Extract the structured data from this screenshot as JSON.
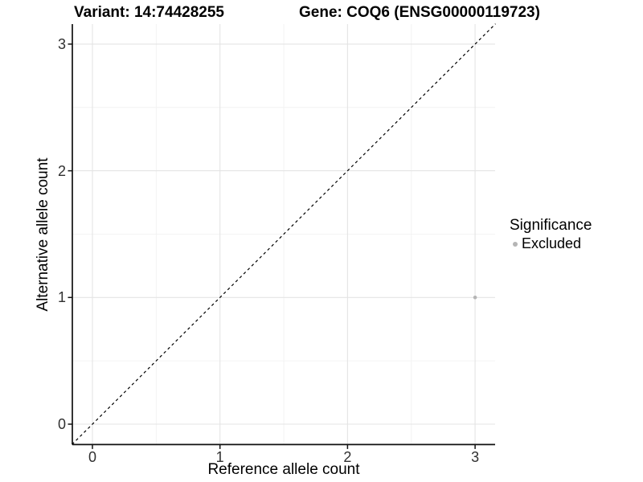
{
  "header": {
    "variant_title": "Variant: 14:74428255",
    "gene_title": "Gene: COQ6 (ENSG00000119723)"
  },
  "legend": {
    "title": "Significance",
    "items": [
      {
        "label": "Excluded",
        "color": "#b5b5b5"
      }
    ]
  },
  "chart_data": {
    "type": "scatter",
    "title_left": "Variant: 14:74428255",
    "title_right": "Gene: COQ6 (ENSG00000119723)",
    "xlabel": "Reference allele count",
    "ylabel": "Alternative allele count",
    "x_ticks": [
      0,
      1,
      2,
      3
    ],
    "y_ticks": [
      0,
      1,
      2,
      3
    ],
    "xlim": [
      -0.16,
      3.16
    ],
    "ylim": [
      -0.16,
      3.16
    ],
    "grid": "major+minor",
    "legend_position": "right",
    "identity_line": {
      "style": "dashed",
      "color": "#000000",
      "from": [
        -0.16,
        -0.16
      ],
      "to": [
        3.16,
        3.16
      ]
    },
    "series": [
      {
        "name": "Excluded",
        "color": "#b5b5b5",
        "points": [
          {
            "x": 3,
            "y": 1
          }
        ]
      }
    ]
  },
  "colors": {
    "grid_major": "#e4e4e4",
    "grid_minor": "#f2f2f2",
    "axis_line": "#111111",
    "point": "#b5b5b5",
    "dashed_line": "#000000"
  }
}
